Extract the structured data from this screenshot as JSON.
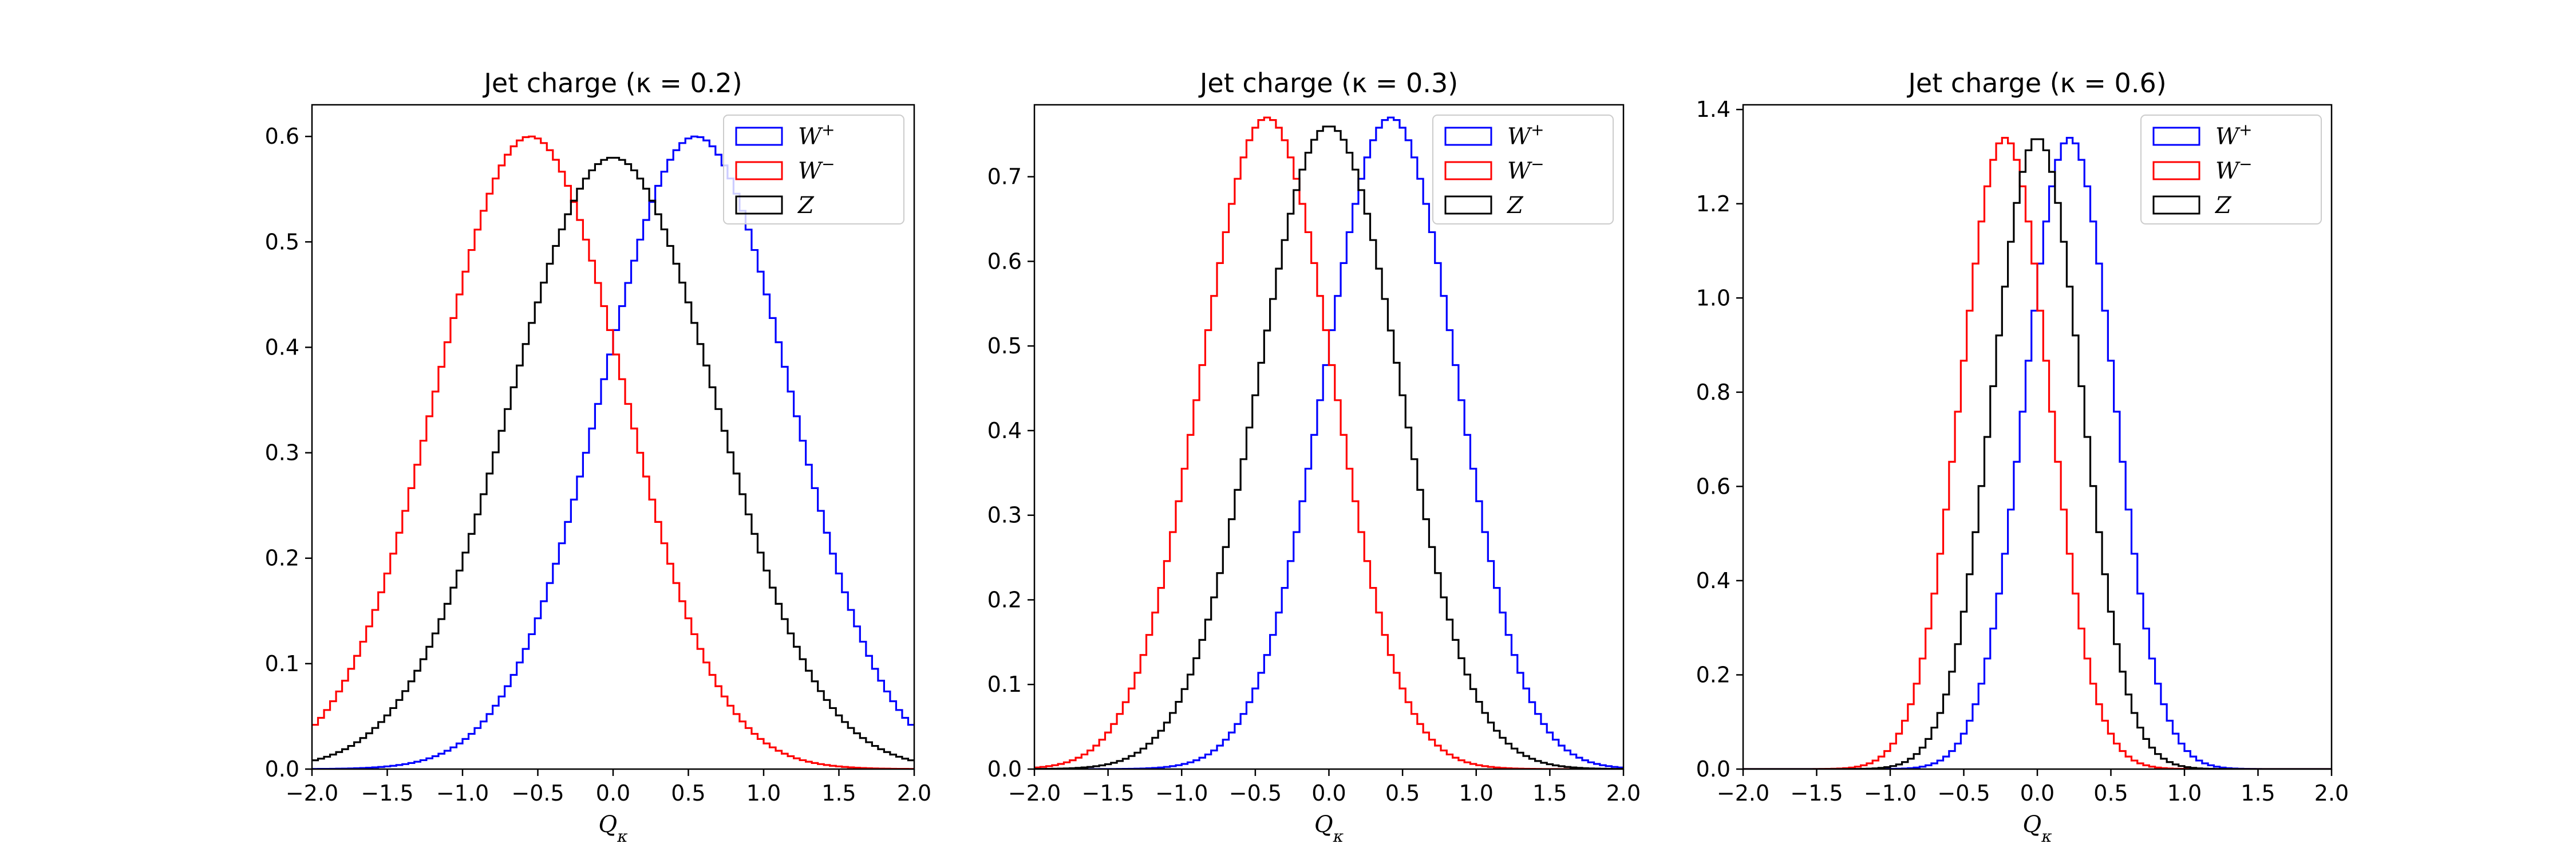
{
  "figure": {
    "background": "#ffffff"
  },
  "chart_data": [
    {
      "type": "step",
      "title": "Jet charge (κ = 0.2)",
      "xlabel": "Qκ",
      "ylabel": "",
      "xlim": [
        -2.0,
        2.0
      ],
      "ylim": [
        0.0,
        0.63
      ],
      "xticks": [
        "−2.0",
        "−1.5",
        "−1.0",
        "−0.5",
        "0.0",
        "0.5",
        "1.0",
        "1.5",
        "2.0"
      ],
      "yticks": [
        "0.0",
        "0.1",
        "0.2",
        "0.3",
        "0.4",
        "0.5",
        "0.6"
      ],
      "grid": false,
      "legend_position": "top-right",
      "series": [
        {
          "name": "W+",
          "color": "#0000ff",
          "mu": 0.55,
          "sigma": 0.62,
          "peak": 0.6
        },
        {
          "name": "W−",
          "color": "#ff0000",
          "mu": -0.55,
          "sigma": 0.62,
          "peak": 0.6
        },
        {
          "name": "Z",
          "color": "#000000",
          "mu": 0.0,
          "sigma": 0.68,
          "peak": 0.58
        }
      ]
    },
    {
      "type": "step",
      "title": "Jet charge (κ = 0.3)",
      "xlabel": "Qκ",
      "ylabel": "",
      "xlim": [
        -2.0,
        2.0
      ],
      "ylim": [
        0.0,
        0.785
      ],
      "xticks": [
        "−2.0",
        "−1.5",
        "−1.0",
        "−0.5",
        "0.0",
        "0.5",
        "1.0",
        "1.5",
        "2.0"
      ],
      "yticks": [
        "0.0",
        "0.1",
        "0.2",
        "0.3",
        "0.4",
        "0.5",
        "0.6",
        "0.7"
      ],
      "grid": false,
      "legend_position": "top-right",
      "series": [
        {
          "name": "W+",
          "color": "#0000ff",
          "mu": 0.42,
          "sigma": 0.45,
          "peak": 0.77
        },
        {
          "name": "W−",
          "color": "#ff0000",
          "mu": -0.42,
          "sigma": 0.45,
          "peak": 0.77
        },
        {
          "name": "Z",
          "color": "#000000",
          "mu": 0.0,
          "sigma": 0.48,
          "peak": 0.76
        }
      ]
    },
    {
      "type": "step",
      "title": "Jet charge (κ = 0.6)",
      "xlabel": "Qκ",
      "ylabel": "",
      "xlim": [
        -2.0,
        2.0
      ],
      "ylim": [
        0.0,
        1.41
      ],
      "xticks": [
        "−2.0",
        "−1.5",
        "−1.0",
        "−0.5",
        "0.0",
        "0.5",
        "1.0",
        "1.5",
        "2.0"
      ],
      "yticks": [
        "0.0",
        "0.2",
        "0.4",
        "0.6",
        "0.8",
        "1.0",
        "1.2",
        "1.4"
      ],
      "grid": false,
      "legend_position": "top-right",
      "series": [
        {
          "name": "W+",
          "color": "#0000ff",
          "mu": 0.22,
          "sigma": 0.3,
          "peak": 1.34
        },
        {
          "name": "W−",
          "color": "#ff0000",
          "mu": -0.22,
          "sigma": 0.3,
          "peak": 1.34
        },
        {
          "name": "Z",
          "color": "#000000",
          "mu": 0.0,
          "sigma": 0.3,
          "peak": 1.34
        }
      ]
    }
  ]
}
